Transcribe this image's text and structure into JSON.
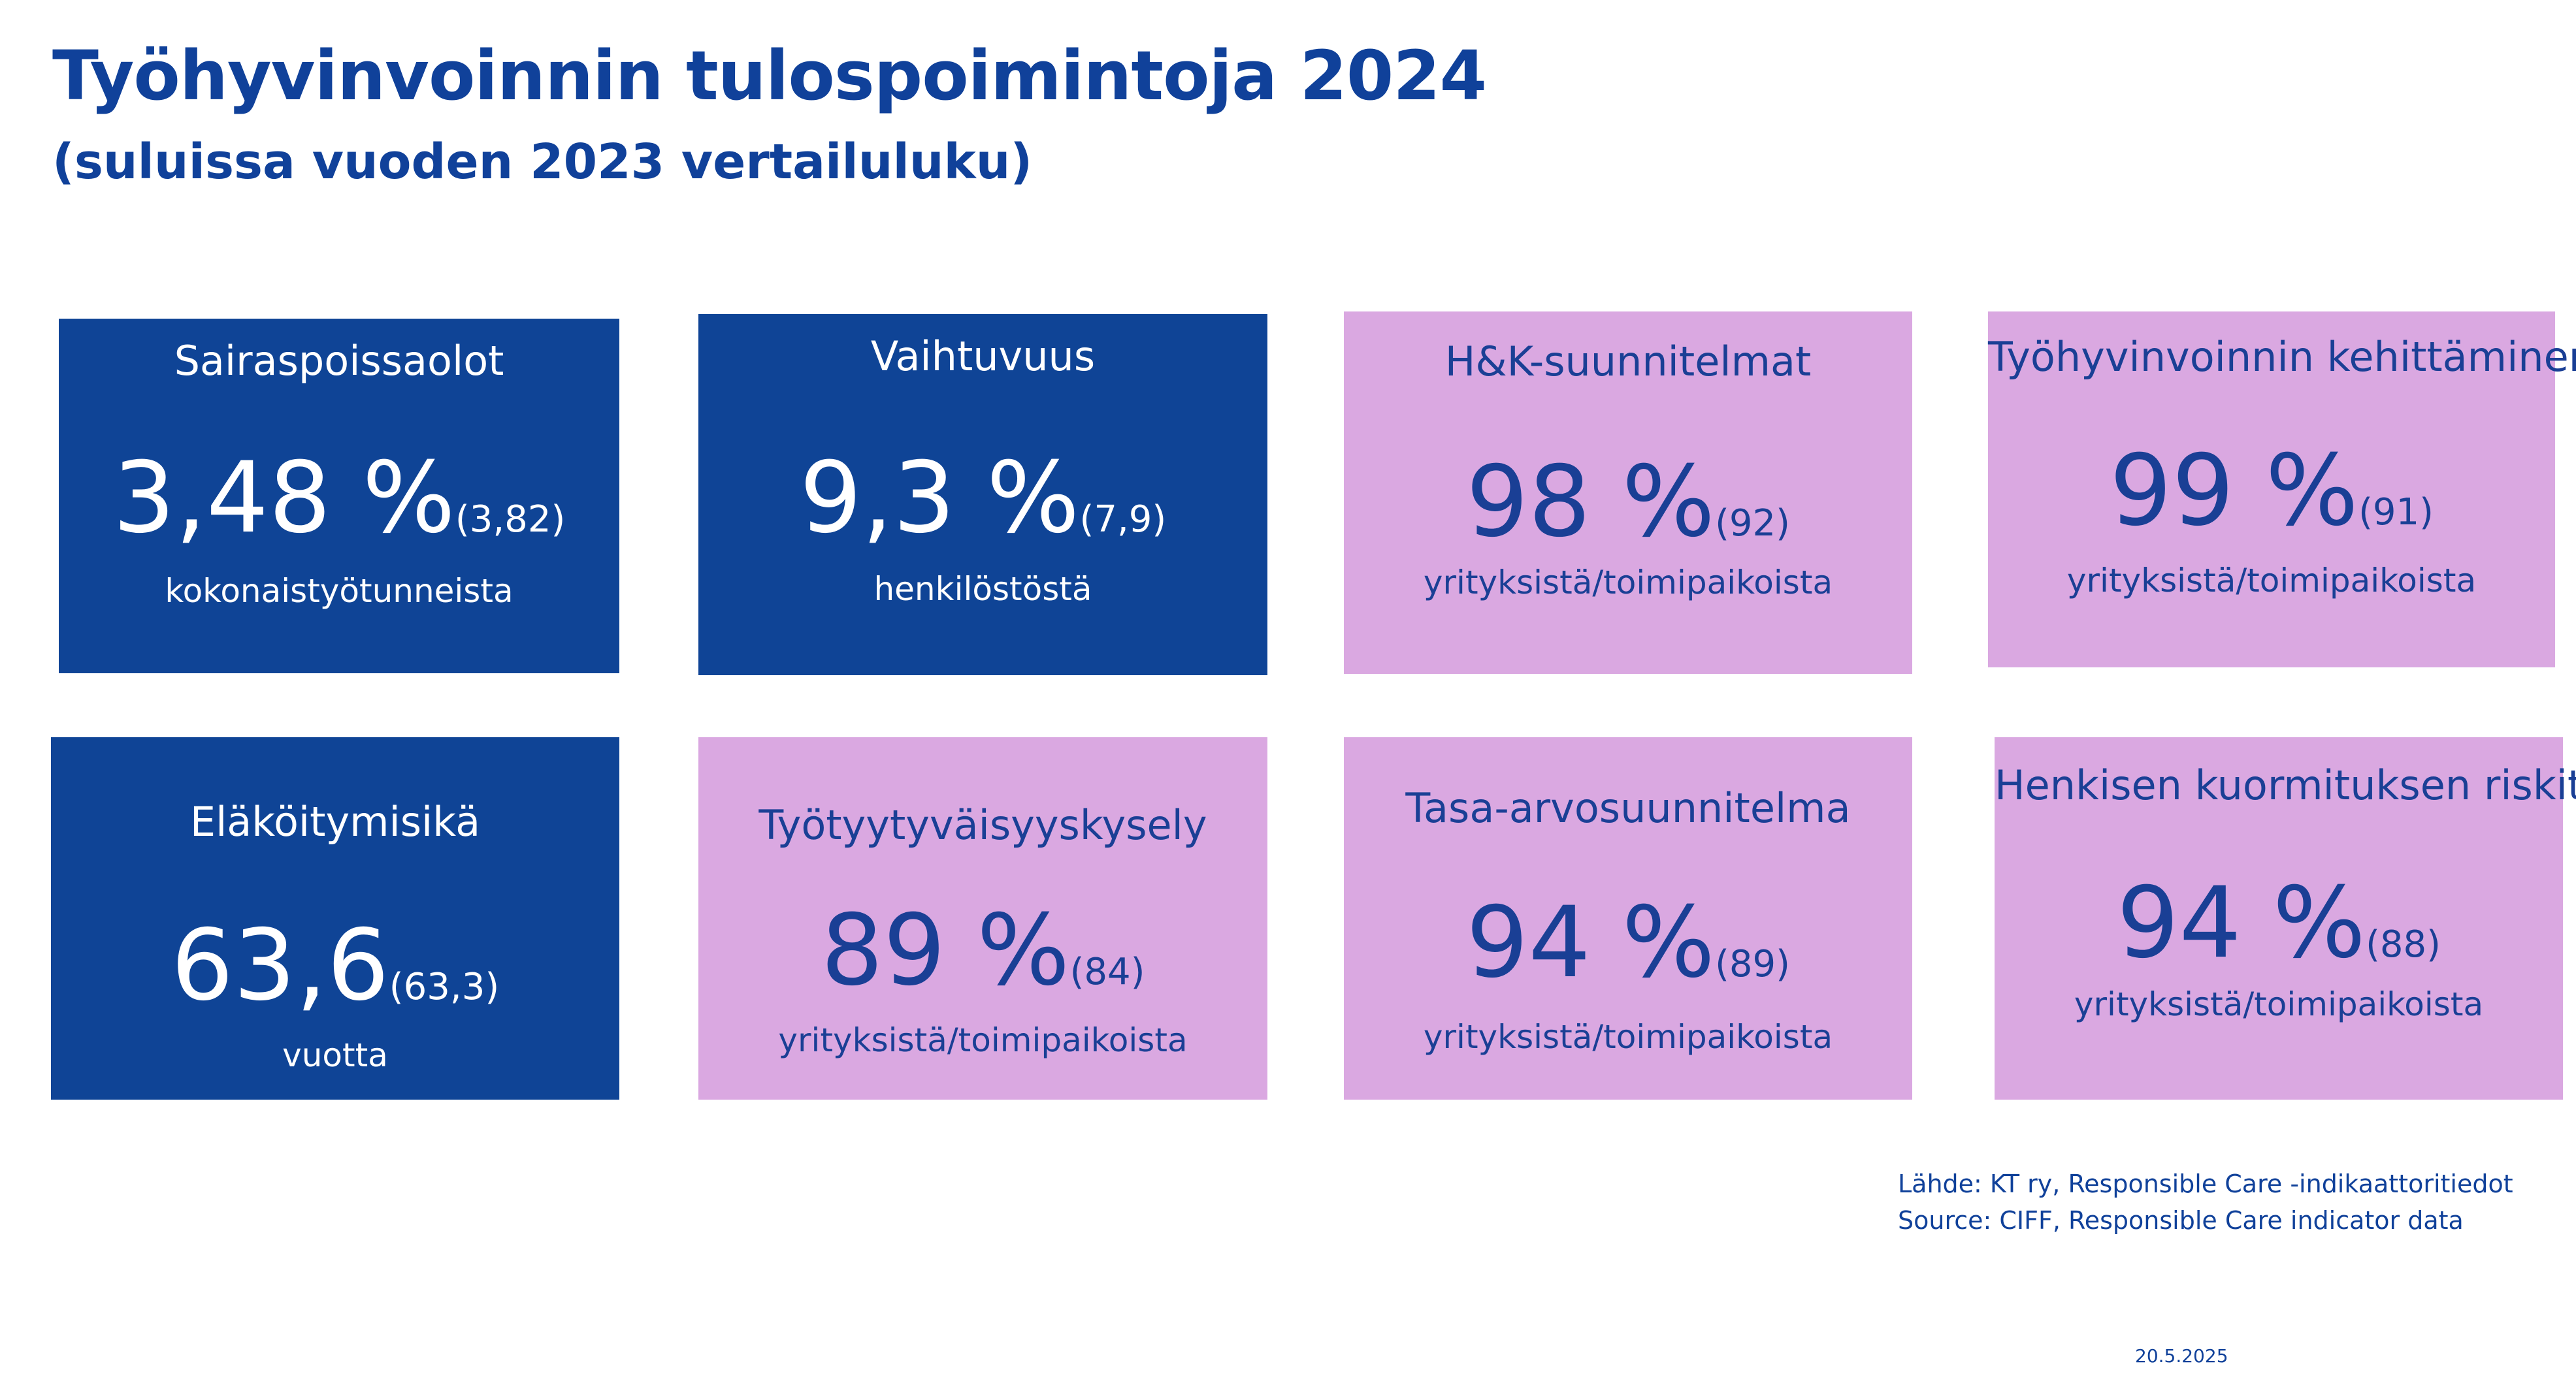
{
  "header": {
    "title": "Työhyvinvoinnin tulospoimintoja 2024",
    "subtitle": "(suluissa vuoden 2023 vertailuluku)"
  },
  "colors": {
    "title": "#10419a",
    "tile_blue": "#0f4496",
    "tile_pink": "#daa8e1",
    "pink_text": "#1a3f95"
  },
  "tiles": [
    {
      "label": "Sairaspoissaolot",
      "value": "3,48 %",
      "comparison": "(3,82)",
      "unit": "kokonaistyötunneista"
    },
    {
      "label": "Vaihtuvuus",
      "value": "9,3 %",
      "comparison": "(7,9)",
      "unit": "henkilöstöstä"
    },
    {
      "label": "H&K-suunnitelmat",
      "value": "98 %",
      "comparison": "(92)",
      "unit": "yrityksistä/toimipaikoista"
    },
    {
      "label": "Työhyvinvoinnin kehittäminen",
      "value": "99 %",
      "comparison": "(91)",
      "unit": "yrityksistä/toimipaikoista"
    },
    {
      "label": "Eläköitymisikä",
      "value": "63,6",
      "comparison": "(63,3)",
      "unit": "vuotta"
    },
    {
      "label": "Työtyytyväisyyskysely",
      "value": "89 %",
      "comparison": "(84)",
      "unit": "yrityksistä/toimipaikoista"
    },
    {
      "label": "Tasa-arvosuunnitelma",
      "value": "94 %",
      "comparison": "(89)",
      "unit": "yrityksistä/toimipaikoista"
    },
    {
      "label": "Henkisen kuormituksen riskit",
      "value": "94 %",
      "comparison": "(88)",
      "unit": "yrityksistä/toimipaikoista"
    }
  ],
  "source": {
    "line_fi": "Lähde: KT ry, Responsible Care -indikaattoritiedot",
    "line_en": "Source: CIFF, Responsible Care indicator data"
  },
  "date": "20.5.2025"
}
